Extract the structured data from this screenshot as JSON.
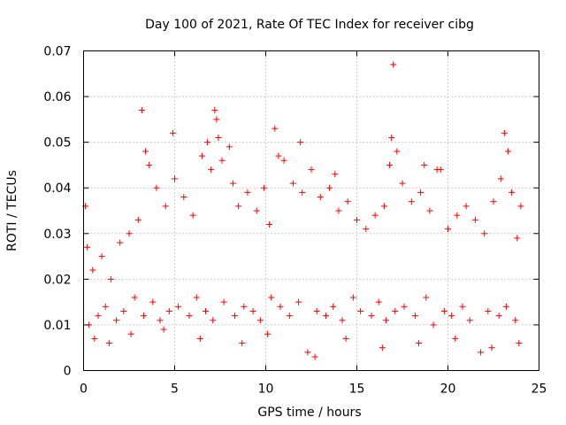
{
  "chart_data": {
    "type": "scatter",
    "title": "Day 100 of 2021, Rate Of TEC Index for receiver cibg",
    "xlabel": "GPS time / hours",
    "ylabel": "ROTI / TECUs",
    "xlim": [
      0,
      25
    ],
    "ylim": [
      0,
      0.07
    ],
    "xticks": [
      0,
      5,
      10,
      15,
      20,
      25
    ],
    "xtick_labels": [
      "0",
      "5",
      "10",
      "15",
      "20",
      "25"
    ],
    "yticks": [
      0,
      0.01,
      0.02,
      0.03,
      0.04,
      0.05,
      0.06,
      0.07
    ],
    "ytick_labels": [
      "0",
      "0.01",
      "0.02",
      "0.03",
      "0.04",
      "0.05",
      "0.06",
      "0.07"
    ],
    "grid": true,
    "legend": "none",
    "marker": "+",
    "series": [
      {
        "name": "ROTI",
        "color": "#ff0000",
        "x": [
          0.1,
          0.2,
          0.5,
          1.0,
          1.5,
          2.0,
          2.5,
          3.0,
          3.2,
          3.4,
          3.6,
          4.0,
          4.5,
          4.9,
          5.0,
          5.5,
          6.0,
          6.5,
          6.8,
          7.0,
          7.2,
          7.3,
          7.4,
          7.6,
          8.0,
          8.2,
          8.5,
          9.0,
          9.5,
          9.9,
          10.2,
          10.5,
          10.7,
          11.0,
          11.5,
          11.9,
          12.0,
          12.5,
          13.0,
          13.5,
          13.8,
          14.0,
          14.5,
          15.0,
          15.5,
          16.0,
          16.5,
          16.8,
          16.9,
          17.0,
          17.2,
          17.5,
          18.0,
          18.5,
          18.7,
          19.0,
          19.4,
          19.6,
          20.0,
          20.5,
          21.0,
          21.5,
          22.0,
          22.5,
          22.9,
          23.1,
          23.3,
          23.5,
          23.8,
          24.0,
          0.3,
          0.8,
          1.2,
          1.8,
          2.2,
          2.8,
          3.3,
          3.8,
          4.2,
          4.7,
          5.2,
          5.8,
          6.2,
          6.7,
          7.1,
          7.7,
          8.3,
          8.8,
          9.3,
          9.7,
          10.3,
          10.8,
          11.3,
          11.8,
          12.3,
          12.8,
          13.3,
          13.7,
          14.2,
          14.8,
          15.2,
          15.8,
          16.2,
          16.6,
          17.1,
          17.6,
          18.2,
          18.8,
          19.2,
          19.8,
          20.2,
          20.8,
          21.2,
          21.8,
          22.2,
          22.8,
          23.2,
          23.7,
          0.6,
          1.4,
          2.6,
          4.4,
          6.4,
          8.7,
          10.1,
          12.7,
          14.4,
          16.4,
          18.4,
          20.4,
          22.4,
          23.9
        ],
        "y": [
          0.036,
          0.027,
          0.022,
          0.025,
          0.02,
          0.028,
          0.03,
          0.033,
          0.057,
          0.048,
          0.045,
          0.04,
          0.036,
          0.052,
          0.042,
          0.038,
          0.034,
          0.047,
          0.05,
          0.044,
          0.057,
          0.055,
          0.051,
          0.046,
          0.049,
          0.041,
          0.036,
          0.039,
          0.035,
          0.04,
          0.032,
          0.053,
          0.047,
          0.046,
          0.041,
          0.05,
          0.039,
          0.044,
          0.038,
          0.04,
          0.043,
          0.035,
          0.037,
          0.033,
          0.031,
          0.034,
          0.036,
          0.045,
          0.051,
          0.067,
          0.048,
          0.041,
          0.037,
          0.039,
          0.045,
          0.035,
          0.044,
          0.044,
          0.031,
          0.034,
          0.036,
          0.033,
          0.03,
          0.037,
          0.042,
          0.052,
          0.048,
          0.039,
          0.029,
          0.036,
          0.01,
          0.012,
          0.014,
          0.011,
          0.013,
          0.016,
          0.012,
          0.015,
          0.011,
          0.013,
          0.014,
          0.012,
          0.016,
          0.013,
          0.011,
          0.015,
          0.012,
          0.014,
          0.013,
          0.011,
          0.016,
          0.014,
          0.012,
          0.015,
          0.004,
          0.013,
          0.012,
          0.014,
          0.011,
          0.016,
          0.013,
          0.012,
          0.015,
          0.011,
          0.013,
          0.014,
          0.012,
          0.016,
          0.01,
          0.013,
          0.012,
          0.014,
          0.011,
          0.004,
          0.013,
          0.012,
          0.014,
          0.011,
          0.007,
          0.006,
          0.008,
          0.009,
          0.007,
          0.006,
          0.008,
          0.003,
          0.007,
          0.005,
          0.006,
          0.007,
          0.005,
          0.006
        ]
      }
    ]
  }
}
